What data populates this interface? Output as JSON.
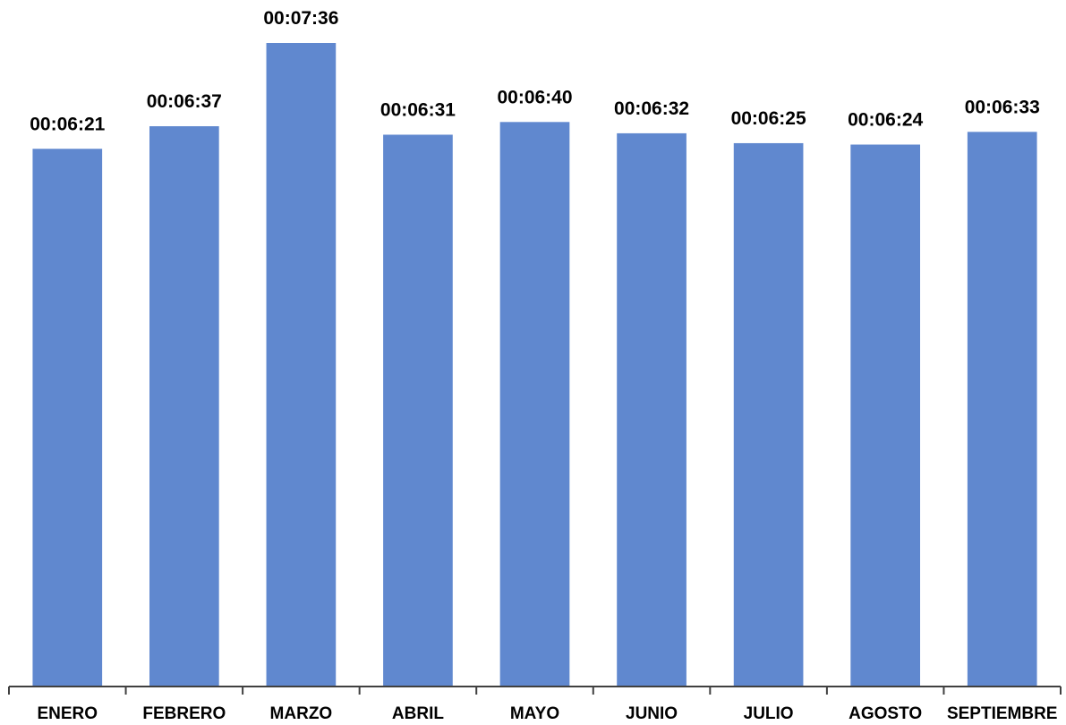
{
  "chart_data": {
    "type": "bar",
    "title": "",
    "xlabel": "",
    "ylabel": "",
    "categories": [
      "ENERO",
      "FEBRERO",
      "MARZO",
      "ABRIL",
      "MAYO",
      "JUNIO",
      "JULIO",
      "AGOSTO",
      "SEPTIEMBRE"
    ],
    "values": [
      "00:06:21",
      "00:06:37",
      "00:07:36",
      "00:06:31",
      "00:06:40",
      "00:06:32",
      "00:06:25",
      "00:06:24",
      "00:06:33"
    ],
    "value_unit": "hh:mm:ss",
    "ylim_seconds": [
      0,
      456
    ],
    "grid": false,
    "legend": "none",
    "bar_color": "#6088CF"
  }
}
